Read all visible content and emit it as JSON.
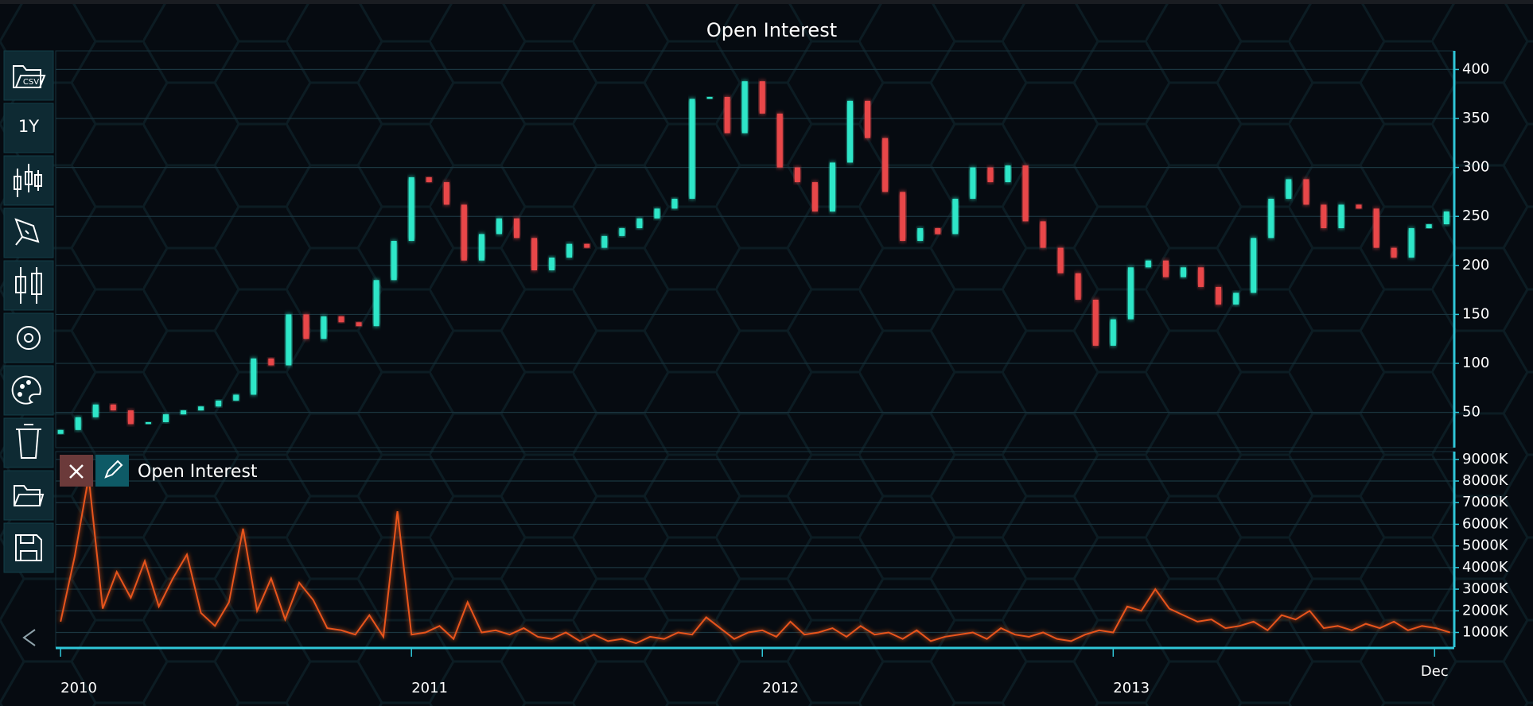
{
  "toolbar": {
    "range_button": "1Y"
  },
  "chart_data": [
    {
      "type": "candlestick",
      "title": "Open Interest",
      "up_color": "#2ee6c8",
      "down_color": "#e8474a",
      "x": [
        2010.0,
        2010.05,
        2010.1,
        2010.15,
        2010.2,
        2010.25,
        2010.3,
        2010.35,
        2010.4,
        2010.45,
        2010.5,
        2010.55,
        2010.6,
        2010.65,
        2010.7,
        2010.75,
        2010.8,
        2010.85,
        2010.9,
        2010.95,
        2011.0,
        2011.05,
        2011.1,
        2011.15,
        2011.2,
        2011.25,
        2011.3,
        2011.35,
        2011.4,
        2011.45,
        2011.5,
        2011.55,
        2011.6,
        2011.65,
        2011.7,
        2011.75,
        2011.8,
        2011.85,
        2011.9,
        2011.95,
        2012.0,
        2012.05,
        2012.1,
        2012.15,
        2012.2,
        2012.25,
        2012.3,
        2012.35,
        2012.4,
        2012.45,
        2012.5,
        2012.55,
        2012.6,
        2012.65,
        2012.7,
        2012.75,
        2012.8,
        2012.85,
        2012.9,
        2012.95,
        2013.0,
        2013.05,
        2013.1,
        2013.15,
        2013.2,
        2013.25,
        2013.3,
        2013.35,
        2013.4,
        2013.45,
        2013.5,
        2013.55,
        2013.6,
        2013.65,
        2013.7,
        2013.75,
        2013.8,
        2013.85,
        2013.9,
        2013.95
      ],
      "open": [
        28,
        32,
        45,
        58,
        52,
        38,
        40,
        48,
        52,
        56,
        62,
        68,
        105,
        98,
        150,
        125,
        148,
        142,
        138,
        185,
        225,
        290,
        285,
        262,
        205,
        232,
        248,
        228,
        195,
        208,
        222,
        218,
        230,
        238,
        248,
        258,
        268,
        370,
        372,
        335,
        388,
        355,
        300,
        285,
        255,
        305,
        368,
        330,
        275,
        225,
        238,
        232,
        268,
        300,
        285,
        302,
        245,
        218,
        192,
        165,
        118,
        145,
        198,
        205,
        188,
        198,
        178,
        160,
        172,
        228,
        268,
        288,
        262,
        238,
        262,
        258,
        218,
        208,
        238,
        242
      ],
      "high": [
        40,
        53,
        66,
        66,
        60,
        48,
        56,
        60,
        64,
        70,
        76,
        113,
        118,
        162,
        160,
        155,
        155,
        150,
        193,
        233,
        298,
        300,
        292,
        270,
        240,
        258,
        255,
        235,
        216,
        230,
        230,
        238,
        246,
        256,
        266,
        276,
        412,
        395,
        380,
        400,
        398,
        362,
        310,
        292,
        315,
        380,
        372,
        338,
        282,
        250,
        245,
        278,
        310,
        308,
        310,
        308,
        252,
        225,
        198,
        170,
        152,
        210,
        215,
        212,
        206,
        204,
        184,
        180,
        235,
        276,
        298,
        292,
        268,
        270,
        276,
        262,
        224,
        244,
        250,
        264
      ],
      "low": [
        20,
        24,
        37,
        44,
        30,
        30,
        32,
        40,
        44,
        48,
        54,
        60,
        90,
        92,
        115,
        118,
        132,
        130,
        130,
        178,
        218,
        275,
        252,
        182,
        195,
        222,
        218,
        185,
        187,
        200,
        210,
        210,
        222,
        230,
        240,
        250,
        262,
        330,
        318,
        325,
        340,
        290,
        270,
        232,
        245,
        298,
        318,
        262,
        210,
        215,
        222,
        225,
        260,
        275,
        278,
        235,
        205,
        182,
        155,
        105,
        110,
        140,
        190,
        178,
        180,
        168,
        152,
        155,
        165,
        222,
        262,
        252,
        228,
        232,
        250,
        210,
        198,
        202,
        230,
        236
      ],
      "close": [
        32,
        45,
        58,
        52,
        38,
        40,
        48,
        52,
        56,
        62,
        68,
        105,
        98,
        150,
        125,
        148,
        142,
        138,
        185,
        225,
        290,
        285,
        262,
        205,
        232,
        248,
        228,
        195,
        208,
        222,
        218,
        230,
        238,
        248,
        258,
        268,
        370,
        372,
        335,
        388,
        355,
        300,
        285,
        255,
        305,
        368,
        330,
        275,
        225,
        238,
        232,
        268,
        300,
        285,
        302,
        245,
        218,
        192,
        165,
        118,
        145,
        198,
        205,
        188,
        198,
        178,
        160,
        172,
        228,
        268,
        288,
        262,
        238,
        262,
        258,
        218,
        208,
        238,
        242,
        255
      ],
      "xlim": [
        2009.986,
        2013.972
      ],
      "ylim": [
        14,
        419
      ],
      "yticks": [
        50,
        100,
        150,
        200,
        250,
        300,
        350,
        400
      ],
      "grid": true
    },
    {
      "type": "line",
      "series": [
        {
          "name": "Open Interest",
          "color": "#e8541a",
          "values": [
            1500000,
            4500000,
            8200000,
            2100000,
            3800000,
            2600000,
            4300000,
            2200000,
            3500000,
            4600000,
            1900000,
            1300000,
            2400000,
            5800000,
            2000000,
            3500000,
            1600000,
            3300000,
            2500000,
            1200000,
            1100000,
            900000,
            1800000,
            800000,
            6600000,
            900000,
            1000000,
            1300000,
            700000,
            2400000,
            1000000,
            1100000,
            900000,
            1200000,
            800000,
            700000,
            1000000,
            600000,
            900000,
            600000,
            700000,
            500000,
            800000,
            700000,
            1000000,
            900000,
            1700000,
            1200000,
            700000,
            1000000,
            1100000,
            800000,
            1500000,
            900000,
            1000000,
            1200000,
            800000,
            1300000,
            900000,
            1000000,
            700000,
            1100000,
            600000,
            800000,
            900000,
            1000000,
            700000,
            1200000,
            900000,
            800000,
            1000000,
            700000,
            600000,
            900000,
            1100000,
            1000000,
            2200000,
            2000000,
            3000000,
            2100000,
            1800000,
            1500000,
            1600000,
            1200000,
            1300000,
            1500000,
            1100000,
            1800000,
            1600000,
            2000000,
            1200000,
            1300000,
            1100000,
            1400000,
            1200000,
            1500000,
            1100000,
            1300000,
            1200000,
            1000000
          ]
        }
      ],
      "x": [
        2010.0,
        2010.04,
        2010.08,
        2010.12,
        2010.16,
        2010.2,
        2010.24,
        2010.28,
        2010.32,
        2010.36,
        2010.4,
        2010.44,
        2010.48,
        2010.52,
        2010.56,
        2010.6,
        2010.64,
        2010.68,
        2010.72,
        2010.76,
        2010.8,
        2010.84,
        2010.88,
        2010.92,
        2010.96,
        2011.0,
        2011.04,
        2011.08,
        2011.12,
        2011.16,
        2011.2,
        2011.24,
        2011.28,
        2011.32,
        2011.36,
        2011.4,
        2011.44,
        2011.48,
        2011.52,
        2011.56,
        2011.6,
        2011.64,
        2011.68,
        2011.72,
        2011.76,
        2011.8,
        2011.84,
        2011.88,
        2011.92,
        2011.96,
        2012.0,
        2012.04,
        2012.08,
        2012.12,
        2012.16,
        2012.2,
        2012.24,
        2012.28,
        2012.32,
        2012.36,
        2012.4,
        2012.44,
        2012.48,
        2012.52,
        2012.56,
        2012.6,
        2012.64,
        2012.68,
        2012.72,
        2012.76,
        2012.8,
        2012.84,
        2012.88,
        2012.92,
        2012.96,
        2013.0,
        2013.04,
        2013.08,
        2013.12,
        2013.16,
        2013.2,
        2013.24,
        2013.28,
        2013.32,
        2013.36,
        2013.4,
        2013.44,
        2013.48,
        2013.52,
        2013.56,
        2013.6,
        2013.64,
        2013.68,
        2013.72,
        2013.76,
        2013.8,
        2013.84,
        2013.88,
        2013.92,
        2013.96
      ],
      "xlim": [
        2009.986,
        2013.972
      ],
      "xticks": [
        2010,
        2011,
        2012,
        2013,
        {
          "value": 2013.916,
          "label": "Dec"
        }
      ],
      "ylim": [
        320000,
        9360000
      ],
      "yticks": [
        {
          "value": 1000000,
          "label": "1000K"
        },
        {
          "value": 2000000,
          "label": "2000K"
        },
        {
          "value": 3000000,
          "label": "3000K"
        },
        {
          "value": 4000000,
          "label": "4000K"
        },
        {
          "value": 5000000,
          "label": "5000K"
        },
        {
          "value": 6000000,
          "label": "6000K"
        },
        {
          "value": 7000000,
          "label": "7000K"
        },
        {
          "value": 8000000,
          "label": "8000K"
        },
        {
          "value": 9000000,
          "label": "9000K"
        }
      ],
      "grid": true
    }
  ]
}
